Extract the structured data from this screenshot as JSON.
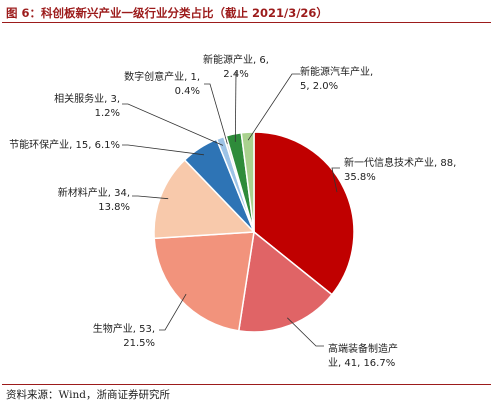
{
  "figure": {
    "title": "图 6：科创板新兴产业一级行业分类占比（截止 2021/3/26）",
    "source": "资料来源：Wind，浙商证券研究所"
  },
  "chart_data": {
    "type": "pie",
    "start": "12 o'clock",
    "direction": "clockwise",
    "slices": [
      {
        "name": "新一代信息技术产业",
        "count": 88,
        "percent": 35.8,
        "color": "#c00000",
        "label_lines": [
          "新一代信息技术产业, 88,",
          "35.8%"
        ]
      },
      {
        "name": "高端装备制造产业",
        "count": 41,
        "percent": 16.7,
        "color": "#e06466",
        "label_lines": [
          "高端装备制造产",
          "业, 41, 16.7%"
        ]
      },
      {
        "name": "生物产业",
        "count": 53,
        "percent": 21.5,
        "color": "#f2937c",
        "label_lines": [
          "生物产业, 53,",
          "21.5%"
        ]
      },
      {
        "name": "新材料产业",
        "count": 34,
        "percent": 13.8,
        "color": "#f8c9ab",
        "label_lines": [
          "新材料产业, 34,",
          "13.8%"
        ]
      },
      {
        "name": "节能环保产业",
        "count": 15,
        "percent": 6.1,
        "color": "#2e74b5",
        "label_lines": [
          "节能环保产业, 15, 6.1%"
        ]
      },
      {
        "name": "相关服务业",
        "count": 3,
        "percent": 1.2,
        "color": "#9dc3e6",
        "label_lines": [
          "相关服务业, 3,",
          "1.2%"
        ]
      },
      {
        "name": "数字创意产业",
        "count": 1,
        "percent": 0.4,
        "color": "#d9d9d9",
        "label_lines": [
          "数字创意产业, 1,",
          "0.4%"
        ]
      },
      {
        "name": "新能源产业",
        "count": 6,
        "percent": 2.4,
        "color": "#2e8b3a",
        "label_lines": [
          "新能源产业, 6,",
          "2.4%"
        ]
      },
      {
        "name": "新能源汽车产业",
        "count": 5,
        "percent": 2.0,
        "color": "#a9d18e",
        "label_lines": [
          "新能源汽车产业,",
          "5, 2.0%"
        ]
      }
    ]
  }
}
